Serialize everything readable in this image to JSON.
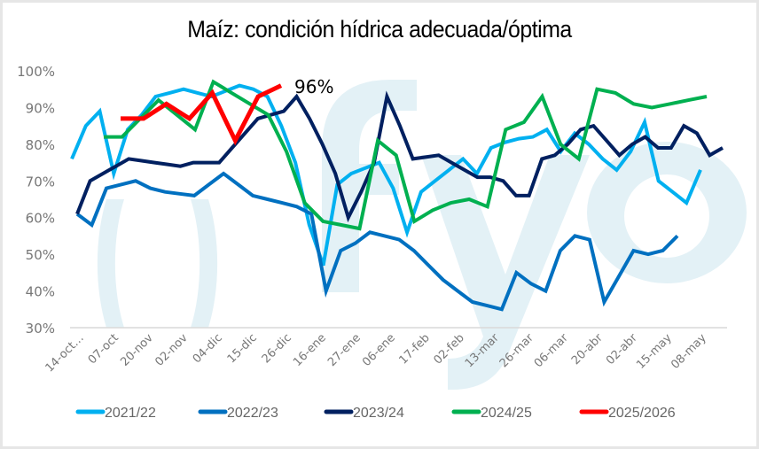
{
  "chart_data": {
    "type": "line",
    "title": "Maíz: condición hídrica adecuada/óptima",
    "xlabel": "",
    "ylabel": "",
    "ylim": [
      30,
      100
    ],
    "yticks": [
      "30%",
      "40%",
      "50%",
      "60%",
      "70%",
      "80%",
      "90%",
      "100%"
    ],
    "ytick_values": [
      30,
      40,
      50,
      60,
      70,
      80,
      90,
      100
    ],
    "grid": false,
    "legend_position": "bottom",
    "x_categories": [
      "14-oct…",
      "07-oct",
      "20-nov",
      "02-nov",
      "04-dic",
      "15-dic",
      "26-dic",
      "16-ene",
      "27-ene",
      "06-ene",
      "17-feb",
      "02-feb",
      "13-mar",
      "26-mar",
      "06-mar",
      "20-abr",
      "02-abr",
      "15-may",
      "08-may"
    ],
    "n_points": 39,
    "annotation": {
      "text": "96%",
      "series": "2025/2026"
    },
    "watermark": "ofyo",
    "series": [
      {
        "name": "2021/22",
        "color": "#00b0f0",
        "values": [
          76,
          85,
          89,
          72,
          84,
          88,
          93,
          94,
          95,
          94,
          93,
          94.5,
          96,
          95,
          93,
          85,
          75,
          58,
          47,
          69,
          72,
          73.5,
          75,
          68,
          56,
          67,
          70,
          73,
          76,
          72,
          79,
          80.5,
          81.5,
          82,
          84,
          78,
          83,
          80,
          76,
          73,
          78,
          86,
          70,
          67,
          64,
          73
        ]
      },
      {
        "name": "2022/23",
        "color": "#0070c0",
        "values": [
          61,
          58,
          68,
          69,
          70,
          68,
          67,
          66.5,
          66,
          69,
          72,
          69,
          66,
          65,
          64,
          63,
          61,
          40,
          51,
          53,
          56,
          55,
          54,
          51,
          47,
          43,
          40,
          37,
          36,
          35,
          45,
          42,
          40,
          51,
          55,
          54,
          37,
          44,
          51,
          50,
          51,
          55
        ]
      },
      {
        "name": "2023/24",
        "color": "#002060",
        "values": [
          61,
          70,
          72,
          74,
          76,
          75.5,
          75,
          74.5,
          74,
          75,
          75,
          75,
          79,
          83,
          87,
          88,
          89,
          93,
          87,
          80,
          72,
          60,
          67,
          75,
          93,
          85,
          76,
          76.5,
          77,
          75,
          73,
          71,
          71,
          70,
          66,
          66,
          76,
          77,
          80,
          84,
          85,
          81,
          77,
          80,
          82,
          79,
          79,
          85,
          83,
          77,
          79
        ]
      },
      {
        "name": "2024/25",
        "color": "#00b050",
        "values": [
          82,
          82,
          87,
          92,
          88,
          84,
          97,
          94,
          91,
          88,
          78,
          64,
          59,
          58,
          57,
          81,
          77,
          59,
          62,
          64,
          65,
          63,
          84,
          86,
          93,
          80,
          76,
          95,
          94,
          91,
          90,
          91,
          92,
          93
        ]
      },
      {
        "name": "2025/2026",
        "color": "#ff0000",
        "values": [
          87,
          87,
          91,
          87,
          94,
          81,
          93,
          96
        ]
      }
    ],
    "series_x_index": {
      "2021/22": [
        0,
        0.7,
        1.5,
        2,
        2.5,
        3,
        4,
        5,
        6,
        7,
        8,
        9,
        10,
        11,
        12,
        13,
        14,
        15,
        16,
        17,
        18,
        19,
        20,
        21,
        22,
        23,
        24,
        25,
        26,
        27,
        28,
        29,
        30,
        31,
        32,
        33,
        34,
        35,
        36,
        37,
        38,
        39,
        40,
        41,
        42,
        43
      ],
      "note": "x positions are generated by script"
    }
  },
  "legend": [
    {
      "label": "2021/22",
      "color": "#00b0f0"
    },
    {
      "label": "2022/23",
      "color": "#0070c0"
    },
    {
      "label": "2023/24",
      "color": "#002060"
    },
    {
      "label": "2024/25",
      "color": "#00b050"
    },
    {
      "label": "2025/2026",
      "color": "#ff0000"
    }
  ]
}
